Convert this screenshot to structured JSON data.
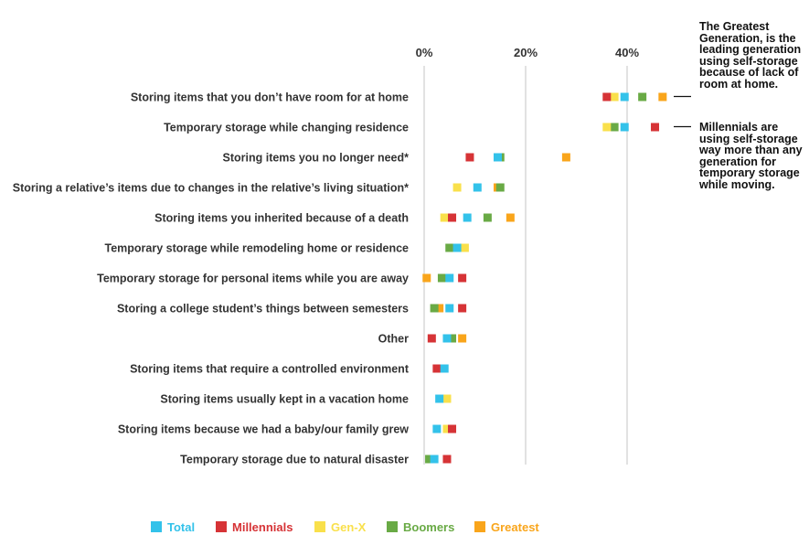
{
  "chart_data": {
    "type": "scatter",
    "xlim": [
      0,
      50
    ],
    "xticks": [
      {
        "value": 0,
        "label": "0%"
      },
      {
        "value": 20,
        "label": "20%"
      },
      {
        "value": 40,
        "label": "40%"
      }
    ],
    "legend_position": "bottom",
    "series": [
      {
        "name": "Total",
        "color": "#33c2ea"
      },
      {
        "name": "Millennials",
        "color": "#d63336"
      },
      {
        "name": "Gen-X",
        "color": "#f9e04b"
      },
      {
        "name": "Boomers",
        "color": "#69aa45"
      },
      {
        "name": "Greatest",
        "color": "#f9a51b"
      }
    ],
    "categories": [
      "Storing items that you don’t have room for at home",
      "Temporary storage while changing residence",
      "Storing items you no longer need*",
      "Storing a relative’s items due to changes in the relative’s living situation*",
      "Storing items you inherited because of a death",
      "Temporary storage while remodeling home or residence",
      "Temporary storage for personal items while you are away",
      "Storing a college student’s things between semesters",
      "Other",
      "Storing items that require a controlled environment",
      "Storing items usually kept in a vacation home",
      "Storing items because we had a baby/our family grew",
      "Temporary storage due to natural disaster"
    ],
    "values": [
      {
        "Total": 39.5,
        "Millennials": 36.0,
        "Gen-X": 37.5,
        "Boomers": 43.0,
        "Greatest": 47.0
      },
      {
        "Total": 39.5,
        "Millennials": 45.5,
        "Gen-X": 36.0,
        "Boomers": 37.5,
        "Greatest": null
      },
      {
        "Total": 14.5,
        "Millennials": 9.0,
        "Gen-X": null,
        "Boomers": 15.0,
        "Greatest": 28.0
      },
      {
        "Total": 10.5,
        "Millennials": null,
        "Gen-X": 6.5,
        "Boomers": 15.0,
        "Greatest": 14.5
      },
      {
        "Total": 8.5,
        "Millennials": 5.5,
        "Gen-X": 4.0,
        "Boomers": 12.5,
        "Greatest": 17.0
      },
      {
        "Total": 6.5,
        "Millennials": null,
        "Gen-X": 8.0,
        "Boomers": 5.0,
        "Greatest": null
      },
      {
        "Total": 5.0,
        "Millennials": 7.5,
        "Gen-X": null,
        "Boomers": 3.5,
        "Greatest": 0.5
      },
      {
        "Total": 5.0,
        "Millennials": 7.5,
        "Gen-X": null,
        "Boomers": 2.0,
        "Greatest": 3.0
      },
      {
        "Total": 4.5,
        "Millennials": 1.5,
        "Gen-X": null,
        "Boomers": 5.5,
        "Greatest": 7.5
      },
      {
        "Total": 4.0,
        "Millennials": 2.5,
        "Gen-X": null,
        "Boomers": null,
        "Greatest": null
      },
      {
        "Total": 3.0,
        "Millennials": null,
        "Gen-X": 4.5,
        "Boomers": null,
        "Greatest": null
      },
      {
        "Total": 2.5,
        "Millennials": 5.5,
        "Gen-X": 4.5,
        "Boomers": null,
        "Greatest": null
      },
      {
        "Total": 2.0,
        "Millennials": 4.5,
        "Gen-X": null,
        "Boomers": 1.0,
        "Greatest": null
      }
    ],
    "annotations": [
      "The Greatest Generation, is the leading generation using self-storage because of lack of room at home.",
      "Millennials are using self-storage way more than any generation for temporary storage while moving."
    ]
  }
}
